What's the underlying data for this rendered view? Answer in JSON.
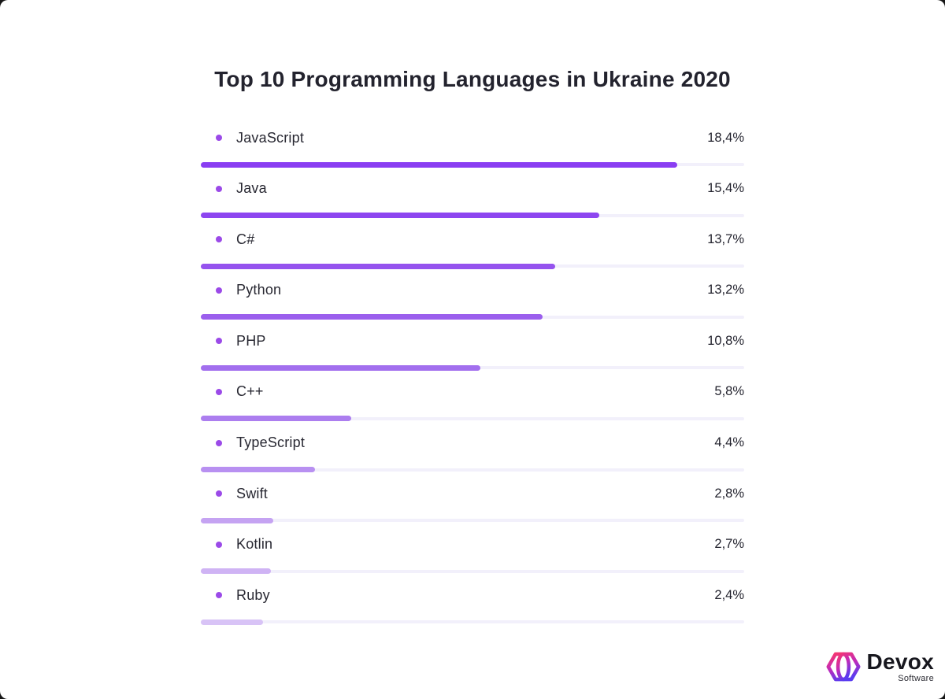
{
  "title": "Top 10 Programming Languages in Ukraine 2020",
  "chart_data": {
    "type": "bar",
    "orientation": "horizontal",
    "title": "Top 10 Programming Languages in Ukraine 2020",
    "categories": [
      "JavaScript",
      "Java",
      "C#",
      "Python",
      "PHP",
      "C++",
      "TypeScript",
      "Swift",
      "Kotlin",
      "Ruby"
    ],
    "values": [
      18.4,
      15.4,
      13.7,
      13.2,
      10.8,
      5.8,
      4.4,
      2.8,
      2.7,
      2.4
    ],
    "value_labels": [
      "18,4%",
      "15,4%",
      "13,7%",
      "13,2%",
      "10,8%",
      "5,8%",
      "4,4%",
      "2,8%",
      "2,7%",
      "2,4%"
    ],
    "unit": "%",
    "scale_max": 21,
    "grid": false,
    "legend": "none",
    "bullet_color": "#9b4ae8",
    "track_color": "#f2f0fb",
    "bar_colors": [
      "#8a3ef2",
      "#8d46f0",
      "#9553ee",
      "#9b5fed",
      "#a26fee",
      "#ac7eef",
      "#b890f1",
      "#c5a3f2",
      "#cfb3f4",
      "#d8c3f6"
    ]
  },
  "branding": {
    "name": "Devox",
    "subtitle": "Software",
    "logo_gradient": [
      "#f43672",
      "#c32bb8",
      "#5a3cf0"
    ]
  }
}
